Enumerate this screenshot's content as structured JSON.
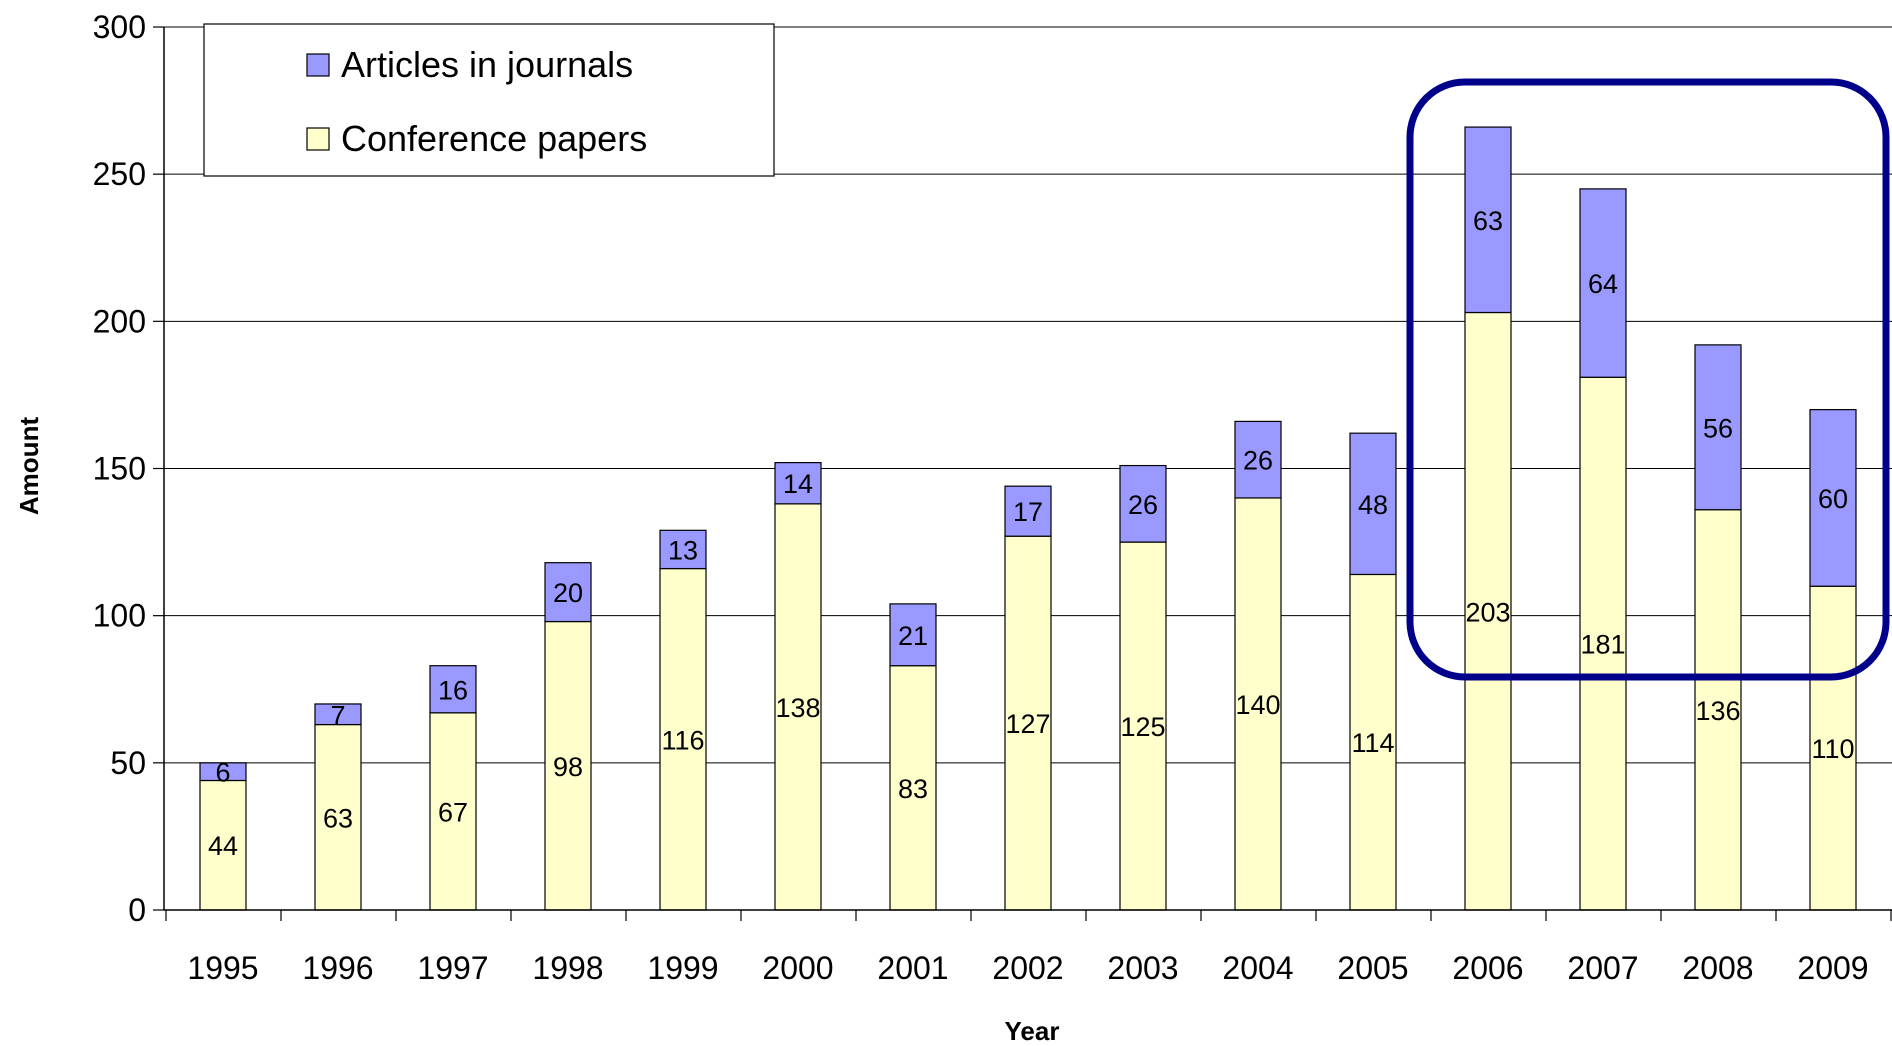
{
  "chart_data": {
    "type": "bar",
    "stacked": true,
    "categories": [
      "1995",
      "1996",
      "1997",
      "1998",
      "1999",
      "2000",
      "2001",
      "2002",
      "2003",
      "2004",
      "2005",
      "2006",
      "2007",
      "2008",
      "2009"
    ],
    "series": [
      {
        "name": "Conference papers",
        "color": "#FFFFCC",
        "values": [
          44,
          63,
          67,
          98,
          116,
          138,
          83,
          127,
          125,
          140,
          114,
          203,
          181,
          136,
          110
        ]
      },
      {
        "name": "Articles in journals",
        "color": "#9999FF",
        "values": [
          6,
          7,
          16,
          20,
          13,
          14,
          21,
          17,
          26,
          26,
          48,
          63,
          64,
          56,
          60
        ]
      }
    ],
    "legend": [
      {
        "label": "Articles in journals",
        "color": "#9999FF"
      },
      {
        "label": "Conference papers",
        "color": "#FFFFCC"
      }
    ],
    "legend_position": "top-left",
    "xlabel": "Year",
    "ylabel": "Amount",
    "ylim": [
      0,
      300
    ],
    "yticks": [
      "0",
      "50",
      "100",
      "150",
      "200",
      "250",
      "300"
    ],
    "grid": true,
    "highlight": {
      "categories": [
        "2006",
        "2007",
        "2008",
        "2009"
      ],
      "color": "#00008B"
    }
  }
}
